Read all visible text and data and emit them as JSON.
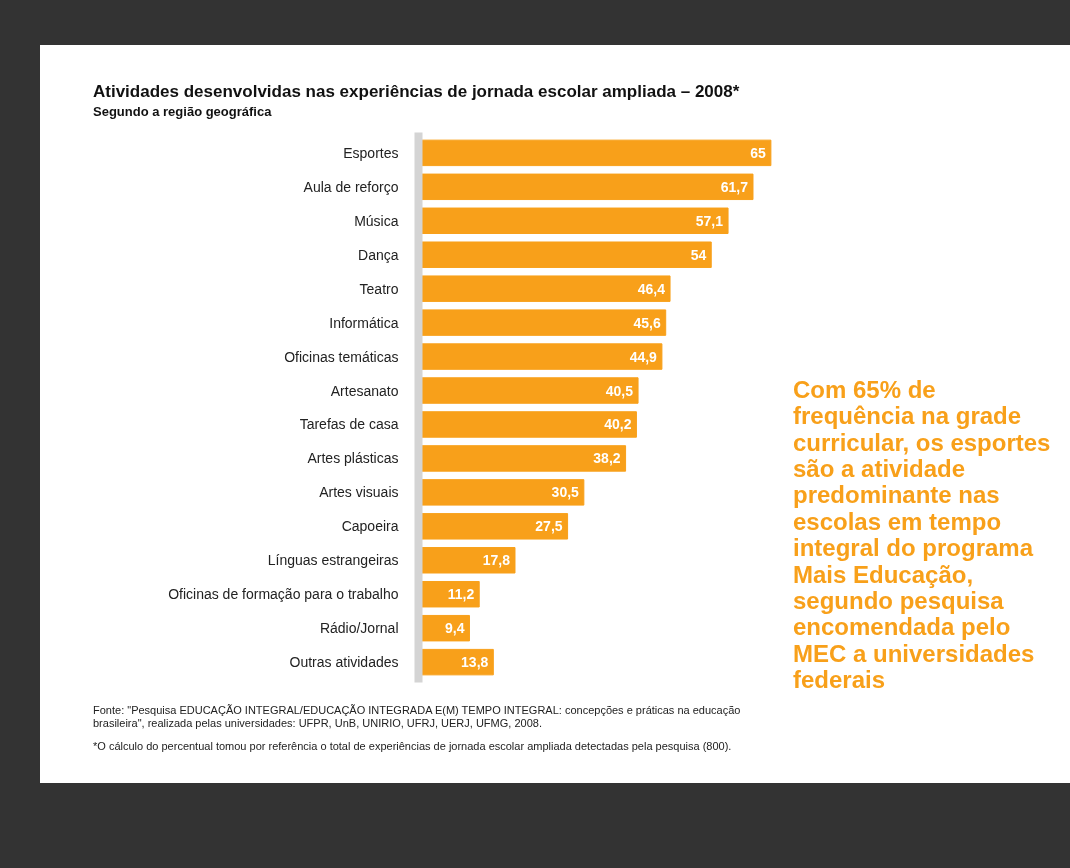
{
  "chart_data": {
    "type": "bar",
    "orientation": "horizontal",
    "title": "Atividades desenvolvidas nas experiências de jornada escolar ampliada – 2008*",
    "subtitle": "Segundo a região geográfica",
    "categories": [
      "Esportes",
      "Aula de reforço",
      "Música",
      "Dança",
      "Teatro",
      "Informática",
      "Oficinas temáticas",
      "Artesanato",
      "Tarefas de casa",
      "Artes plásticas",
      "Artes visuais",
      "Capoeira",
      "Línguas estrangeiras",
      "Oficinas de formação para o trabalho",
      "Rádio/Jornal",
      "Outras atividades"
    ],
    "values": [
      65,
      61.7,
      57.1,
      54,
      46.4,
      45.6,
      44.9,
      40.5,
      40.2,
      38.2,
      30.5,
      27.5,
      17.8,
      11.2,
      9.4,
      13.8
    ],
    "value_labels": [
      "65",
      "61,7",
      "57,1",
      "54",
      "46,4",
      "45,6",
      "44,9",
      "40,5",
      "40,2",
      "38,2",
      "30,5",
      "27,5",
      "17,8",
      "11,2",
      "9,4",
      "13,8"
    ],
    "color": "#f8a01a",
    "grid": false,
    "annotations": [
      "Com 65% de frequência na grade curricular, os esportes são a atividade predominante nas escolas em tempo integral do programa Mais Educação, segundo pesquisa encomendada pelo MEC a universidades federais",
      "Fonte: \"Pesquisa EDUCAÇÃO INTEGRAL/EDUCAÇÃO INTEGRADA E(M) TEMPO INTEGRAL: concepções e práticas na educação brasileira\", realizada pelas universidades: UFPR, UnB, UNIRIO, UFRJ, UERJ, UFMG, 2008.",
      "*O cálculo do percentual tomou por referência o total de experiências de jornada escolar ampliada detectadas pela pesquisa (800)."
    ]
  }
}
